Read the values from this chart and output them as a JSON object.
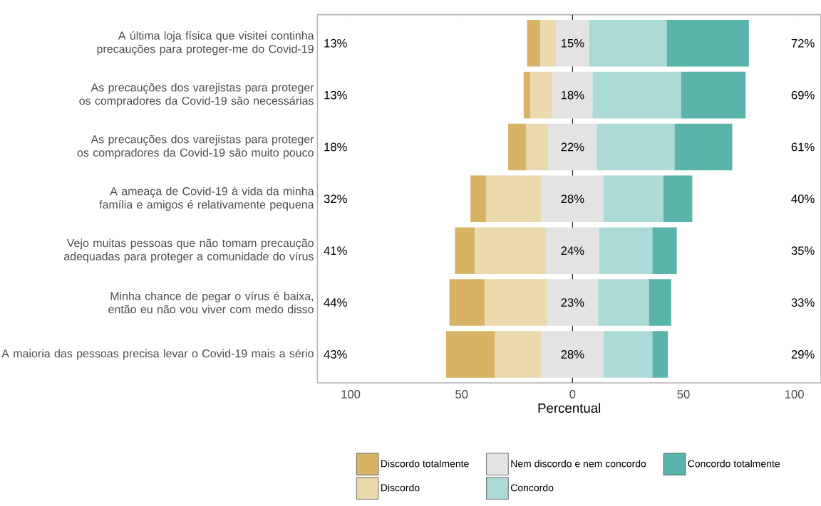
{
  "chart_data": {
    "type": "bar",
    "orientation": "horizontal",
    "categories": [
      "A última loja física que visitei continha precauções para proteger-me do Covid-19",
      "As precauções dos varejistas para proteger os compradores da Covid-19 são necessárias",
      "As precauções dos varejistas para proteger os compradores da Covid-19 são muito pouco",
      "A ameaça de Covid-19 à vida da minha família e amigos é relativamente pequena",
      "Vejo muitas pessoas que não tomam precaução adequadas para proteger a comunidade do vírus",
      "Minha chance de pegar o vírus é baixa, então eu não vou viver com medo disso",
      "A maioria das pessoas precisa levar o Covid-19 mais a sério"
    ],
    "series": [
      {
        "name": "Discordo totalmente",
        "color": "#d8b365",
        "values": [
          6,
          3,
          8,
          7,
          9,
          16,
          22
        ],
        "base": [
          -20.5,
          -22,
          -29,
          -46,
          -53,
          -55.5,
          -57
        ]
      },
      {
        "name": "Discordo",
        "color": "#ebd9ae",
        "values": [
          7,
          10,
          10,
          25,
          32,
          28,
          21
        ],
        "base": [
          -14.5,
          -19,
          -21,
          -39,
          -44,
          -39.5,
          -35
        ]
      },
      {
        "name": "Nem discordo e nem concordo",
        "color": "#e3e3e3",
        "values": [
          15,
          18,
          22,
          28,
          24,
          23,
          28
        ],
        "base": [
          -7.5,
          -9,
          -11,
          -14,
          -12,
          -11.5,
          -14
        ],
        "value_labels": [
          "15%",
          "18%",
          "22%",
          "28%",
          "24%",
          "23%",
          "28%"
        ]
      },
      {
        "name": "Concordo",
        "color": "#acdad6",
        "values": [
          35,
          40,
          35,
          27,
          24,
          23,
          22
        ],
        "base": [
          7.5,
          9,
          11,
          14,
          12,
          11.5,
          14
        ]
      },
      {
        "name": "Concordo totalmente",
        "color": "#5ab4ac",
        "values": [
          37,
          29,
          26,
          13,
          11,
          10,
          7
        ],
        "base": [
          42.5,
          49,
          46,
          41,
          36,
          34.5,
          36
        ]
      }
    ],
    "xlim": [
      -115,
      112
    ],
    "xticks": [
      {
        "value": -100,
        "label": "100"
      },
      {
        "value": -50,
        "label": "50"
      },
      0,
      50,
      100
    ],
    "xlabel": "Percentual",
    "ref_lines": [
      {
        "axis": "x",
        "value": 0,
        "color": "#000000"
      }
    ],
    "legend": "bottom",
    "annotations": [
      "13%",
      "72%",
      "13%",
      "69%",
      "18%",
      "61%",
      "32%",
      "40%",
      "41%",
      "35%",
      "44%",
      "33%",
      "43%",
      "29%"
    ]
  }
}
